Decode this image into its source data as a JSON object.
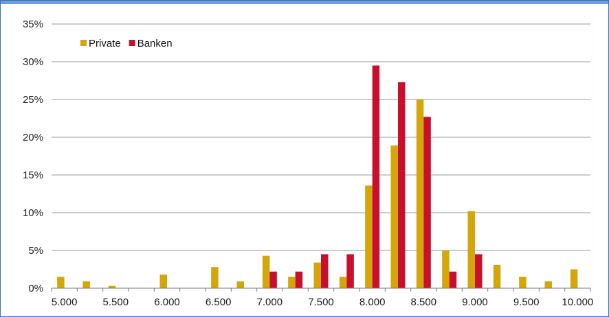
{
  "chart_data": {
    "type": "bar",
    "categories": [
      "5.000",
      "5.250",
      "5.500",
      "5.750",
      "6.000",
      "6.250",
      "6.500",
      "6.750",
      "7.000",
      "7.250",
      "7.500",
      "7.750",
      "8.000",
      "8.250",
      "8.500",
      "8.750",
      "9.000",
      "9.250",
      "9.500",
      "9.750",
      "10.000"
    ],
    "x_tick_labels": [
      "5.000",
      "5.500",
      "6.000",
      "6.500",
      "7.000",
      "7.500",
      "8.000",
      "8.500",
      "9.000",
      "9.500",
      "10.000"
    ],
    "series": [
      {
        "name": "Private",
        "color": "#d4a60a",
        "values": [
          1.5,
          0.9,
          0.3,
          0,
          1.8,
          0,
          2.8,
          0.9,
          4.3,
          1.5,
          3.4,
          1.5,
          13.6,
          18.9,
          25.0,
          5.0,
          10.2,
          3.1,
          1.5,
          0.9,
          2.5
        ]
      },
      {
        "name": "Banken",
        "color": "#c8102e",
        "values": [
          0,
          0,
          0,
          0,
          0,
          0,
          0,
          0,
          2.2,
          2.2,
          4.5,
          4.5,
          29.5,
          27.3,
          22.7,
          2.2,
          4.5,
          0,
          0,
          0,
          0
        ]
      }
    ],
    "y_tick_labels": [
      "0%",
      "5%",
      "10%",
      "15%",
      "20%",
      "25%",
      "30%",
      "35%"
    ],
    "ylim": [
      0,
      35
    ],
    "grid": "horizontal",
    "legend_position": "top-left",
    "title": "",
    "xlabel": "",
    "ylabel": ""
  }
}
